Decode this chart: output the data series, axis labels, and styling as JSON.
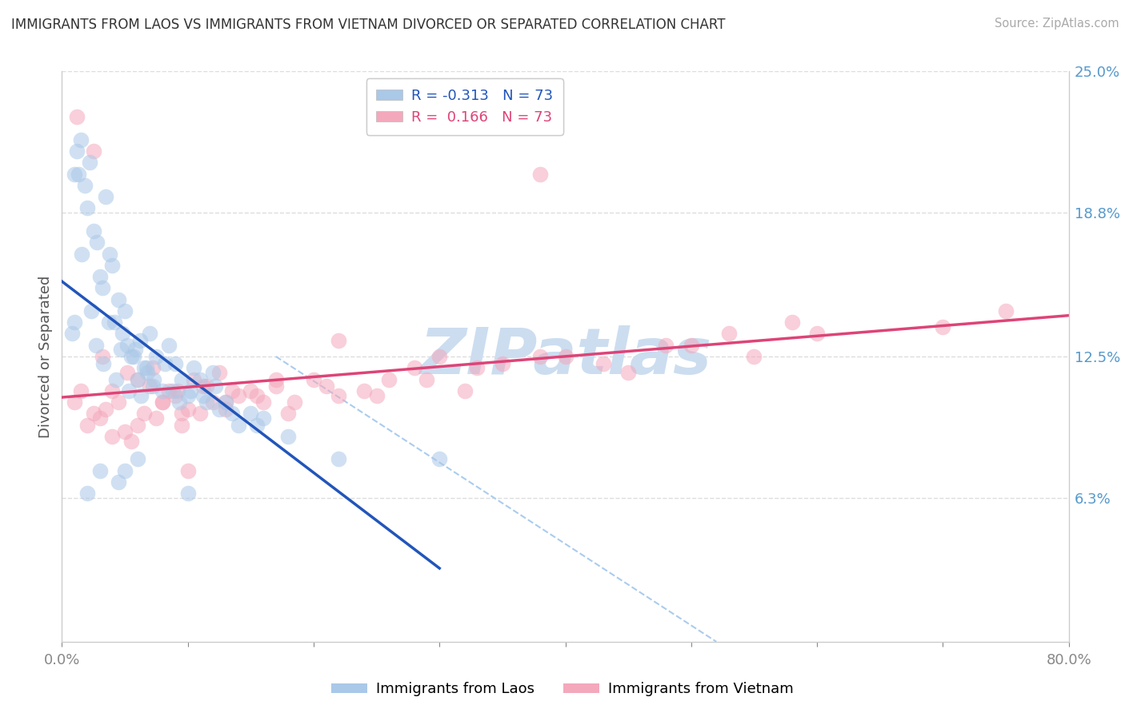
{
  "title": "IMMIGRANTS FROM LAOS VS IMMIGRANTS FROM VIETNAM DIVORCED OR SEPARATED CORRELATION CHART",
  "source": "Source: ZipAtlas.com",
  "ylabel_label": "Divorced or Separated",
  "legend_label1": "Immigrants from Laos",
  "legend_label2": "Immigrants from Vietnam",
  "R1": -0.313,
  "R2": 0.166,
  "N1": 73,
  "N2": 73,
  "xlim": [
    0.0,
    80.0
  ],
  "ylim": [
    0.0,
    25.0
  ],
  "xtick_vals": [
    0.0,
    10.0,
    20.0,
    30.0,
    40.0,
    50.0,
    60.0,
    70.0,
    80.0
  ],
  "xtick_labels_show": [
    0.0,
    80.0
  ],
  "ytick_right_vals": [
    6.3,
    12.5,
    18.8,
    25.0
  ],
  "color_blue": "#aac8e8",
  "color_pink": "#f4a8bc",
  "color_trendline_blue": "#2255bb",
  "color_trendline_pink": "#dd4477",
  "color_diag": "#aaccee",
  "color_grid": "#dddddd",
  "color_ytick_right": "#5599cc",
  "watermark_text": "ZIPatlas",
  "color_watermark": "#ccddf0",
  "background_color": "#ffffff",
  "scatter_alpha": 0.55,
  "scatter_size": 200,
  "blue_x": [
    0.8,
    1.0,
    1.2,
    1.5,
    1.8,
    2.0,
    2.2,
    2.5,
    2.8,
    3.0,
    3.2,
    3.5,
    3.8,
    4.0,
    4.2,
    4.5,
    4.8,
    5.0,
    5.2,
    5.5,
    5.8,
    6.0,
    6.2,
    6.5,
    6.8,
    7.0,
    7.2,
    7.5,
    8.0,
    8.5,
    9.0,
    9.5,
    10.0,
    10.5,
    11.0,
    11.5,
    12.0,
    12.5,
    13.0,
    14.0,
    15.0,
    16.0,
    18.0,
    22.0,
    30.0,
    1.0,
    1.3,
    1.6,
    2.3,
    2.7,
    3.3,
    3.7,
    4.3,
    4.7,
    5.3,
    5.7,
    6.3,
    6.7,
    7.3,
    8.2,
    9.3,
    10.2,
    11.2,
    12.2,
    13.5,
    15.5,
    5.0,
    8.8,
    6.0,
    4.5,
    3.0,
    2.0,
    10.0
  ],
  "blue_y": [
    13.5,
    20.5,
    21.5,
    22.0,
    20.0,
    19.0,
    21.0,
    18.0,
    17.5,
    16.0,
    15.5,
    19.5,
    17.0,
    16.5,
    14.0,
    15.0,
    13.5,
    14.5,
    13.0,
    12.5,
    12.8,
    11.5,
    13.2,
    12.0,
    11.8,
    13.5,
    11.2,
    12.5,
    11.0,
    13.0,
    12.2,
    11.5,
    10.8,
    12.0,
    11.5,
    10.5,
    11.8,
    10.2,
    10.5,
    9.5,
    10.0,
    9.8,
    9.0,
    8.0,
    8.0,
    14.0,
    20.5,
    17.0,
    14.5,
    13.0,
    12.2,
    14.0,
    11.5,
    12.8,
    11.0,
    12.5,
    10.8,
    12.0,
    11.5,
    12.2,
    10.5,
    11.0,
    10.8,
    11.2,
    10.0,
    9.5,
    7.5,
    11.0,
    8.0,
    7.0,
    7.5,
    6.5,
    6.5
  ],
  "pink_x": [
    1.0,
    1.5,
    2.0,
    2.5,
    3.0,
    3.5,
    4.0,
    4.5,
    5.0,
    5.5,
    6.0,
    6.5,
    7.0,
    7.5,
    8.0,
    8.5,
    9.0,
    9.5,
    10.0,
    10.5,
    11.0,
    11.5,
    12.0,
    12.5,
    13.0,
    14.0,
    15.0,
    16.0,
    17.0,
    18.0,
    20.0,
    22.0,
    24.0,
    26.0,
    28.0,
    30.0,
    32.0,
    35.0,
    40.0,
    45.0,
    50.0,
    55.0,
    60.0,
    1.2,
    3.2,
    5.2,
    7.2,
    9.2,
    11.2,
    13.5,
    15.5,
    18.5,
    21.0,
    25.0,
    29.0,
    33.0,
    38.0,
    43.0,
    48.0,
    53.0,
    58.0,
    70.0,
    75.0,
    38.0,
    22.0,
    10.0,
    2.5,
    4.0,
    6.0,
    8.0,
    17.0,
    13.0,
    9.5
  ],
  "pink_y": [
    10.5,
    11.0,
    9.5,
    10.0,
    9.8,
    10.2,
    9.0,
    10.5,
    9.2,
    8.8,
    9.5,
    10.0,
    11.2,
    9.8,
    10.5,
    11.0,
    10.8,
    9.5,
    10.2,
    11.5,
    10.0,
    11.2,
    10.5,
    11.8,
    10.2,
    10.8,
    11.0,
    10.5,
    11.2,
    10.0,
    11.5,
    10.8,
    11.0,
    11.5,
    12.0,
    12.5,
    11.0,
    12.2,
    12.5,
    11.8,
    13.0,
    12.5,
    13.5,
    23.0,
    12.5,
    11.8,
    12.0,
    11.0,
    11.2,
    11.0,
    10.8,
    10.5,
    11.2,
    10.8,
    11.5,
    12.0,
    12.5,
    12.2,
    13.0,
    13.5,
    14.0,
    13.8,
    14.5,
    20.5,
    13.2,
    7.5,
    21.5,
    11.0,
    11.5,
    10.5,
    11.5,
    10.5,
    10.0
  ],
  "blue_trend_x_start": 0.0,
  "blue_trend_x_end": 30.0,
  "pink_trend_x_start": 0.0,
  "pink_trend_x_end": 80.0,
  "diag_x_start": 17.0,
  "diag_x_end": 52.0,
  "diag_y_start": 12.5,
  "diag_y_end": 0.0
}
